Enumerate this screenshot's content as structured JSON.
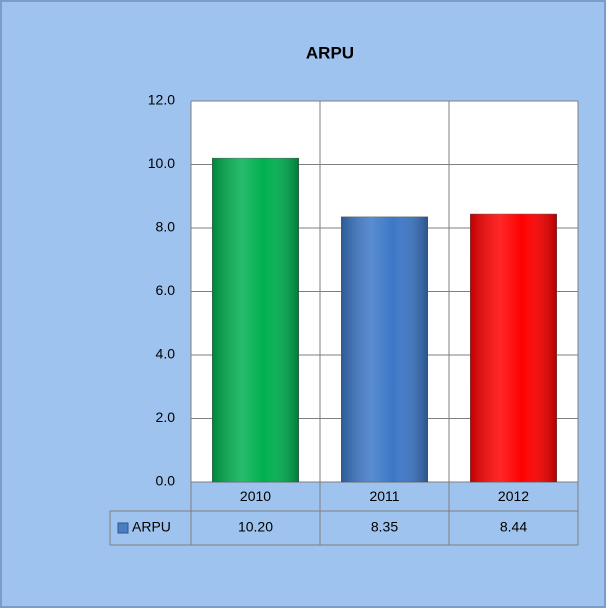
{
  "chart_data": {
    "type": "bar",
    "title": "ARPU",
    "categories": [
      "2010",
      "2011",
      "2012"
    ],
    "series": [
      {
        "name": "ARPU",
        "color": "#4a7ebf",
        "colors": [
          "#00b050",
          "#3c78c8",
          "#ff0000"
        ],
        "values": [
          10.2,
          8.35,
          8.44
        ],
        "value_labels": [
          "10.20",
          "8.35",
          "8.44"
        ]
      }
    ],
    "ylim": [
      0,
      12
    ],
    "yticks": [
      {
        "value": 0,
        "label": "0.0"
      },
      {
        "value": 2,
        "label": "2.0"
      },
      {
        "value": 4,
        "label": "4.0"
      },
      {
        "value": 6,
        "label": "6.0"
      },
      {
        "value": 8,
        "label": "8.0"
      },
      {
        "value": 10,
        "label": "10.0"
      },
      {
        "value": 12,
        "label": "12.0"
      }
    ],
    "grid": true
  }
}
